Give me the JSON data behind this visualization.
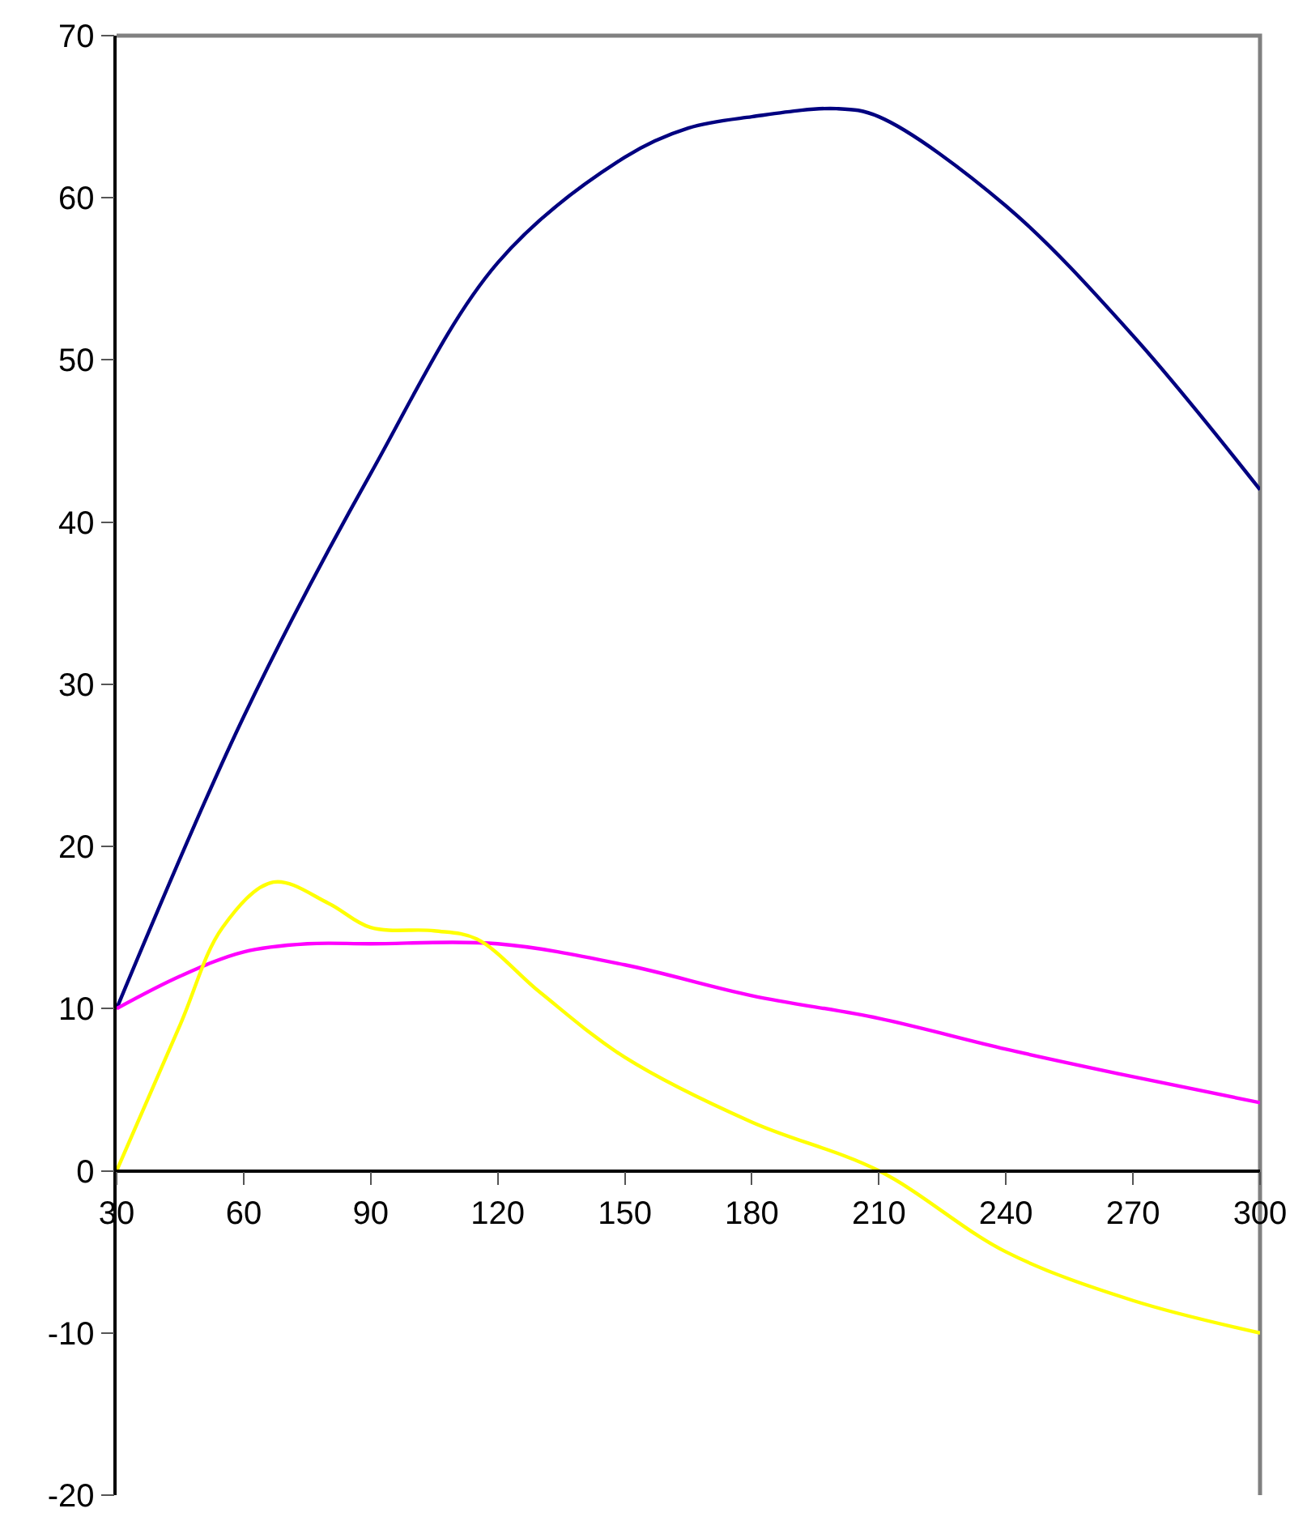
{
  "chart_data": {
    "type": "line",
    "x": [
      30,
      60,
      90,
      120,
      150,
      165,
      180,
      200,
      210,
      240,
      270,
      300
    ],
    "series": [
      {
        "color": "#000080",
        "values": [
          10,
          28,
          43,
          56,
          62.5,
          64.3,
          65,
          65.5,
          65,
          59.5,
          51.5,
          42
        ]
      },
      {
        "color": "#ff00ff",
        "x": [
          30,
          45,
          60,
          75,
          90,
          120,
          150,
          180,
          210,
          240,
          270,
          300
        ],
        "values": [
          10,
          12,
          13.5,
          14,
          14,
          14,
          12.7,
          10.8,
          9.4,
          7.5,
          5.8,
          4.2
        ]
      },
      {
        "color": "#ffff00",
        "x": [
          30,
          45,
          55,
          67,
          80,
          90,
          105,
          115,
          130,
          150,
          180,
          210,
          240,
          270,
          300
        ],
        "values": [
          0,
          9,
          15,
          17.8,
          16.5,
          15,
          14.8,
          14.3,
          11,
          7,
          3,
          0,
          -5,
          -8,
          -10
        ]
      }
    ],
    "xlim": [
      30,
      300
    ],
    "xticks": [
      30,
      60,
      90,
      120,
      150,
      180,
      210,
      240,
      270,
      300
    ],
    "ylim": [
      -20,
      70
    ],
    "yticks": [
      -20,
      -10,
      0,
      10,
      20,
      30,
      40,
      50,
      60,
      70
    ],
    "grid": false,
    "marker": "none",
    "line_style": "solid"
  }
}
